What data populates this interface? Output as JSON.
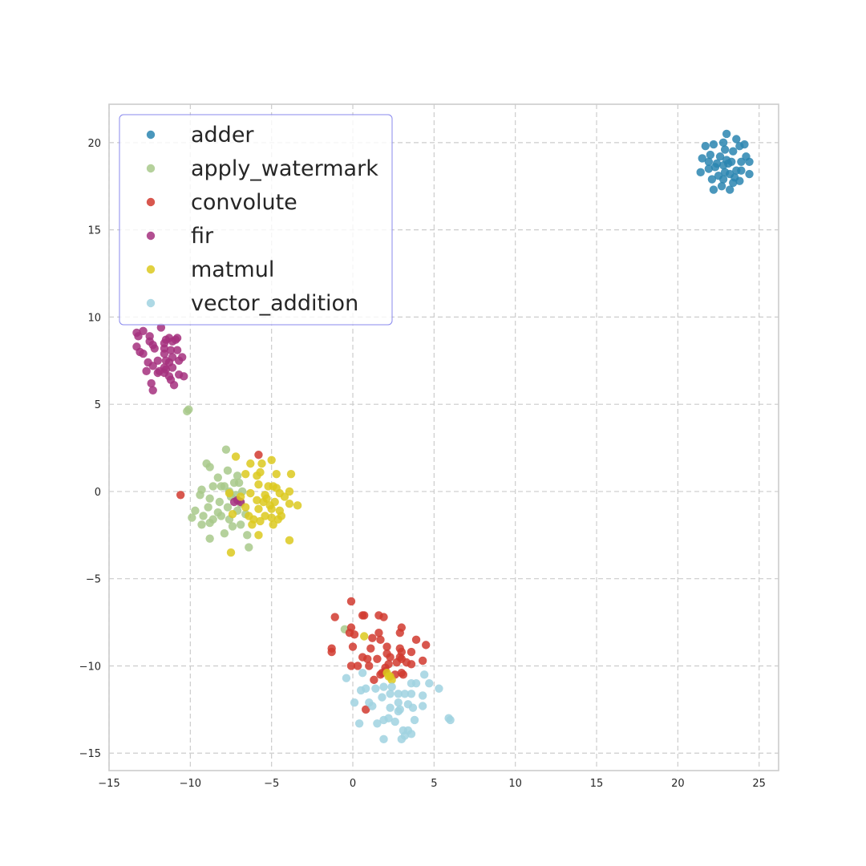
{
  "chart_data": {
    "type": "scatter",
    "title": "",
    "xlabel": "",
    "ylabel": "",
    "xlim": [
      -15,
      26.2
    ],
    "ylim": [
      -16,
      22.2
    ],
    "xticks": [
      -15,
      -10,
      -5,
      0,
      5,
      10,
      15,
      20,
      25
    ],
    "yticks": [
      -15,
      -10,
      -5,
      0,
      5,
      10,
      15,
      20
    ],
    "xtick_labels": [
      "−15",
      "−10",
      "−5",
      "0",
      "5",
      "10",
      "15",
      "20",
      "25"
    ],
    "ytick_labels": [
      "−15",
      "−10",
      "−5",
      "0",
      "5",
      "10",
      "15",
      "20"
    ],
    "grid": true,
    "legend_position": "top-left",
    "series": [
      {
        "name": "adder",
        "color": "#2a85b0",
        "points": [
          [
            23,
            20.5
          ],
          [
            23.8,
            19.8
          ],
          [
            22.2,
            19.9
          ],
          [
            22.8,
            20.0
          ],
          [
            23.6,
            20.2
          ],
          [
            21.7,
            19.8
          ],
          [
            24.1,
            19.9
          ],
          [
            22.0,
            19.3
          ],
          [
            22.9,
            19.6
          ],
          [
            23.4,
            19.5
          ],
          [
            21.5,
            19.1
          ],
          [
            21.9,
            18.9
          ],
          [
            22.6,
            19.2
          ],
          [
            23.1,
            18.8
          ],
          [
            23.9,
            18.9
          ],
          [
            24.4,
            18.9
          ],
          [
            24.2,
            19.2
          ],
          [
            22.3,
            18.6
          ],
          [
            22.8,
            18.7
          ],
          [
            23.6,
            18.4
          ],
          [
            21.9,
            18.5
          ],
          [
            21.4,
            18.3
          ],
          [
            22.5,
            18.1
          ],
          [
            23.2,
            18.2
          ],
          [
            23.9,
            18.4
          ],
          [
            24.4,
            18.2
          ],
          [
            22.1,
            17.9
          ],
          [
            22.8,
            17.9
          ],
          [
            23.4,
            17.7
          ],
          [
            23.8,
            17.8
          ],
          [
            22.2,
            17.3
          ],
          [
            22.7,
            17.5
          ],
          [
            23.5,
            18.0
          ],
          [
            22.9,
            18.3
          ],
          [
            23.2,
            17.3
          ],
          [
            22.4,
            18.8
          ],
          [
            23.3,
            18.9
          ],
          [
            23.0,
            19.0
          ]
        ]
      },
      {
        "name": "apply_watermark",
        "color": "#a8c98b",
        "points": [
          [
            -10.1,
            4.7
          ],
          [
            -10.2,
            4.6
          ],
          [
            -7.8,
            2.4
          ],
          [
            -8.8,
            1.4
          ],
          [
            -9.0,
            1.6
          ],
          [
            -7.7,
            1.2
          ],
          [
            -7.1,
            0.9
          ],
          [
            -8.3,
            0.8
          ],
          [
            -7.9,
            0.3
          ],
          [
            -7.3,
            0.5
          ],
          [
            -8.6,
            0.3
          ],
          [
            -9.3,
            0.1
          ],
          [
            -7.6,
            -0.0
          ],
          [
            -8.8,
            -0.4
          ],
          [
            -9.4,
            -0.2
          ],
          [
            -7.2,
            -0.2
          ],
          [
            -6.8,
            0.0
          ],
          [
            -8.2,
            -0.6
          ],
          [
            -7.7,
            -0.9
          ],
          [
            -8.9,
            -0.9
          ],
          [
            -9.7,
            -1.1
          ],
          [
            -7.1,
            -1.1
          ],
          [
            -8.3,
            -1.2
          ],
          [
            -6.6,
            -1.3
          ],
          [
            -7.6,
            -1.6
          ],
          [
            -8.6,
            -1.6
          ],
          [
            -9.2,
            -1.4
          ],
          [
            -9.9,
            -1.5
          ],
          [
            -8.1,
            -1.4
          ],
          [
            -6.9,
            -1.9
          ],
          [
            -9.3,
            -1.9
          ],
          [
            -8.8,
            -1.8
          ],
          [
            -7.4,
            -2.0
          ],
          [
            -6.5,
            -2.5
          ],
          [
            -7.9,
            -2.4
          ],
          [
            -8.8,
            -2.7
          ],
          [
            -6.4,
            -3.2
          ],
          [
            -7.0,
            0.5
          ],
          [
            -7.5,
            -0.3
          ],
          [
            -6.9,
            -0.7
          ],
          [
            -8.1,
            0.3
          ],
          [
            -0.5,
            -7.9
          ]
        ]
      },
      {
        "name": "convolute",
        "color": "#d13a2f",
        "points": [
          [
            -10.6,
            -0.2
          ],
          [
            -5.8,
            2.1
          ],
          [
            -0.1,
            -6.3
          ],
          [
            -1.1,
            -7.2
          ],
          [
            0.6,
            -7.1
          ],
          [
            0.7,
            -7.1
          ],
          [
            1.6,
            -7.1
          ],
          [
            1.9,
            -7.2
          ],
          [
            -0.1,
            -7.8
          ],
          [
            -0.2,
            -8.1
          ],
          [
            1.6,
            -8.1
          ],
          [
            3.0,
            -7.8
          ],
          [
            2.9,
            -8.1
          ],
          [
            0.1,
            -8.2
          ],
          [
            1.2,
            -8.4
          ],
          [
            1.7,
            -8.5
          ],
          [
            3.9,
            -8.5
          ],
          [
            4.5,
            -8.8
          ],
          [
            -1.3,
            -9.0
          ],
          [
            -1.3,
            -9.2
          ],
          [
            0.0,
            -8.9
          ],
          [
            1.1,
            -9.0
          ],
          [
            2.1,
            -8.9
          ],
          [
            2.9,
            -9.0
          ],
          [
            3.0,
            -9.2
          ],
          [
            3.6,
            -9.2
          ],
          [
            0.6,
            -9.5
          ],
          [
            0.9,
            -9.6
          ],
          [
            1.5,
            -9.6
          ],
          [
            2.1,
            -9.3
          ],
          [
            2.3,
            -9.5
          ],
          [
            2.9,
            -9.5
          ],
          [
            3.0,
            -9.6
          ],
          [
            4.3,
            -9.7
          ],
          [
            -0.1,
            -10.0
          ],
          [
            0.3,
            -10.0
          ],
          [
            1.0,
            -10.0
          ],
          [
            2.0,
            -10.1
          ],
          [
            2.2,
            -9.9
          ],
          [
            2.7,
            -9.8
          ],
          [
            3.3,
            -9.8
          ],
          [
            3.6,
            -9.9
          ],
          [
            1.8,
            -10.4
          ],
          [
            2.0,
            -10.3
          ],
          [
            2.6,
            -10.5
          ],
          [
            1.7,
            -10.5
          ],
          [
            3.0,
            -10.4
          ],
          [
            1.3,
            -10.8
          ],
          [
            3.1,
            -10.5
          ],
          [
            0.8,
            -12.5
          ]
        ]
      },
      {
        "name": "fir",
        "color": "#a4307e",
        "points": [
          [
            -13.3,
            9.1
          ],
          [
            -12.9,
            9.2
          ],
          [
            -11.8,
            9.4
          ],
          [
            -13.2,
            8.9
          ],
          [
            -12.5,
            8.9
          ],
          [
            -11.5,
            8.7
          ],
          [
            -11.3,
            8.8
          ],
          [
            -10.8,
            8.8
          ],
          [
            -12.5,
            8.6
          ],
          [
            -12.3,
            8.4
          ],
          [
            -11.6,
            8.5
          ],
          [
            -11.1,
            8.6
          ],
          [
            -10.9,
            8.7
          ],
          [
            -13.3,
            8.3
          ],
          [
            -12.2,
            8.2
          ],
          [
            -11.6,
            8.2
          ],
          [
            -11.2,
            8.1
          ],
          [
            -10.8,
            8.1
          ],
          [
            -13.1,
            8.0
          ],
          [
            -12.9,
            7.9
          ],
          [
            -11.6,
            7.9
          ],
          [
            -11.1,
            7.7
          ],
          [
            -10.5,
            7.7
          ],
          [
            -10.7,
            7.5
          ],
          [
            -12.6,
            7.4
          ],
          [
            -12.0,
            7.5
          ],
          [
            -11.5,
            7.5
          ],
          [
            -11.3,
            7.4
          ],
          [
            -12.3,
            7.2
          ],
          [
            -11.6,
            7.1
          ],
          [
            -11.1,
            7.1
          ],
          [
            -12.7,
            6.9
          ],
          [
            -11.9,
            6.9
          ],
          [
            -11.6,
            6.8
          ],
          [
            -11.5,
            7.0
          ],
          [
            -10.7,
            6.7
          ],
          [
            -10.4,
            6.6
          ],
          [
            -11.3,
            6.6
          ],
          [
            -12.0,
            6.8
          ],
          [
            -11.2,
            6.4
          ],
          [
            -12.4,
            6.2
          ],
          [
            -11.0,
            6.1
          ],
          [
            -12.3,
            5.8
          ],
          [
            -7.1,
            -0.5
          ],
          [
            -7.3,
            -0.6
          ],
          [
            -6.9,
            -0.6
          ]
        ]
      },
      {
        "name": "matmul",
        "color": "#dcc91f",
        "points": [
          [
            -7.2,
            2.0
          ],
          [
            -6.3,
            1.6
          ],
          [
            -5.6,
            1.6
          ],
          [
            -5.0,
            1.8
          ],
          [
            -5.7,
            1.1
          ],
          [
            -5.9,
            0.9
          ],
          [
            -4.7,
            1.0
          ],
          [
            -3.8,
            1.0
          ],
          [
            -6.6,
            1.0
          ],
          [
            -5.2,
            0.3
          ],
          [
            -5.8,
            0.4
          ],
          [
            -4.9,
            0.3
          ],
          [
            -4.7,
            0.2
          ],
          [
            -3.9,
            0.0
          ],
          [
            -6.3,
            -0.1
          ],
          [
            -5.4,
            -0.2
          ],
          [
            -4.5,
            -0.1
          ],
          [
            -4.2,
            -0.3
          ],
          [
            -5.9,
            -0.5
          ],
          [
            -5.5,
            -0.6
          ],
          [
            -5.3,
            -0.4
          ],
          [
            -4.8,
            -0.6
          ],
          [
            -3.9,
            -0.7
          ],
          [
            -6.6,
            -0.9
          ],
          [
            -5.8,
            -1.0
          ],
          [
            -5.0,
            -1.0
          ],
          [
            -4.5,
            -1.1
          ],
          [
            -5.1,
            -0.8
          ],
          [
            -3.4,
            -0.8
          ],
          [
            -7.4,
            -1.3
          ],
          [
            -6.4,
            -1.4
          ],
          [
            -5.4,
            -1.4
          ],
          [
            -4.4,
            -1.4
          ],
          [
            -5.0,
            -1.5
          ],
          [
            -6.1,
            -1.6
          ],
          [
            -4.6,
            -1.6
          ],
          [
            -5.7,
            -1.7
          ],
          [
            -6.2,
            -1.9
          ],
          [
            -4.9,
            -1.9
          ],
          [
            -5.8,
            -2.5
          ],
          [
            -3.9,
            -2.8
          ],
          [
            -7.5,
            -3.5
          ],
          [
            -7.6,
            -0.1
          ],
          [
            -6.9,
            -0.3
          ],
          [
            0.7,
            -8.3
          ],
          [
            2.1,
            -10.4
          ],
          [
            2.3,
            -10.6
          ],
          [
            2.4,
            -10.8
          ],
          [
            2.2,
            -10.6
          ]
        ]
      },
      {
        "name": "vector_addition",
        "color": "#a0d2e0",
        "points": [
          [
            4.4,
            -10.5
          ],
          [
            -0.4,
            -10.7
          ],
          [
            0.6,
            -10.4
          ],
          [
            3.6,
            -11.0
          ],
          [
            3.9,
            -11.0
          ],
          [
            4.7,
            -11.0
          ],
          [
            1.9,
            -11.2
          ],
          [
            2.4,
            -11.2
          ],
          [
            0.5,
            -11.4
          ],
          [
            0.8,
            -11.3
          ],
          [
            1.4,
            -11.3
          ],
          [
            5.3,
            -11.3
          ],
          [
            2.8,
            -11.6
          ],
          [
            3.2,
            -11.6
          ],
          [
            3.6,
            -11.6
          ],
          [
            4.3,
            -11.7
          ],
          [
            1.8,
            -11.8
          ],
          [
            2.3,
            -11.6
          ],
          [
            0.1,
            -12.1
          ],
          [
            1.0,
            -12.1
          ],
          [
            2.8,
            -12.1
          ],
          [
            3.4,
            -12.2
          ],
          [
            1.2,
            -12.3
          ],
          [
            2.3,
            -12.4
          ],
          [
            2.9,
            -12.5
          ],
          [
            3.7,
            -12.4
          ],
          [
            4.3,
            -12.3
          ],
          [
            2.8,
            -12.6
          ],
          [
            1.9,
            -13.1
          ],
          [
            2.2,
            -13.0
          ],
          [
            2.6,
            -13.2
          ],
          [
            3.8,
            -13.1
          ],
          [
            0.4,
            -13.3
          ],
          [
            1.5,
            -13.3
          ],
          [
            3.1,
            -13.7
          ],
          [
            3.4,
            -13.7
          ],
          [
            3.2,
            -14.0
          ],
          [
            3.6,
            -13.9
          ],
          [
            1.9,
            -14.2
          ],
          [
            3.0,
            -14.2
          ],
          [
            5.9,
            -13.0
          ],
          [
            6.0,
            -13.1
          ]
        ]
      }
    ]
  }
}
